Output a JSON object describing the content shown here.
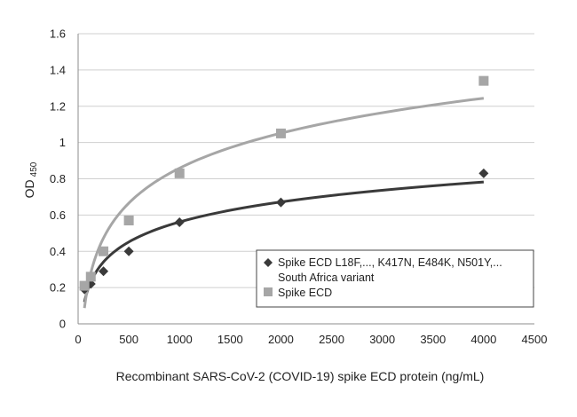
{
  "chart_data": {
    "type": "scatter",
    "xlabel": "Recombinant SARS-CoV-2 (COVID-19) spike ECD protein (ng/mL)",
    "ylabel": "OD",
    "ylabel_subscript": "450",
    "xlim": [
      0,
      4500
    ],
    "ylim": [
      0,
      1.6
    ],
    "x_ticks": [
      "0",
      "500",
      "1000",
      "1500",
      "2000",
      "2500",
      "3000",
      "3500",
      "4000",
      "4500"
    ],
    "y_ticks": [
      "0",
      "0.2",
      "0.4",
      "0.6",
      "0.8",
      "1",
      "1.2",
      "1.4",
      "1.6"
    ],
    "grid": "horizontal",
    "legend_position": "bottom-right",
    "series": [
      {
        "name": "Spike ECD L18F,...,  K417N, E484K, N501Y,...",
        "name_line2": "South Africa variant",
        "marker": "diamond",
        "color": "#3a3a3a",
        "trendline": "logarithmic",
        "points": [
          {
            "x": 62.5,
            "y": 0.19
          },
          {
            "x": 125,
            "y": 0.22
          },
          {
            "x": 250,
            "y": 0.29
          },
          {
            "x": 500,
            "y": 0.4
          },
          {
            "x": 1000,
            "y": 0.56
          },
          {
            "x": 2000,
            "y": 0.67
          },
          {
            "x": 4000,
            "y": 0.83
          }
        ]
      },
      {
        "name": "Spike ECD",
        "marker": "square",
        "color": "#a6a6a6",
        "trendline": "logarithmic",
        "points": [
          {
            "x": 62.5,
            "y": 0.21
          },
          {
            "x": 125,
            "y": 0.26
          },
          {
            "x": 250,
            "y": 0.4
          },
          {
            "x": 500,
            "y": 0.57
          },
          {
            "x": 1000,
            "y": 0.83
          },
          {
            "x": 2000,
            "y": 1.05
          },
          {
            "x": 4000,
            "y": 1.34
          }
        ]
      }
    ]
  }
}
